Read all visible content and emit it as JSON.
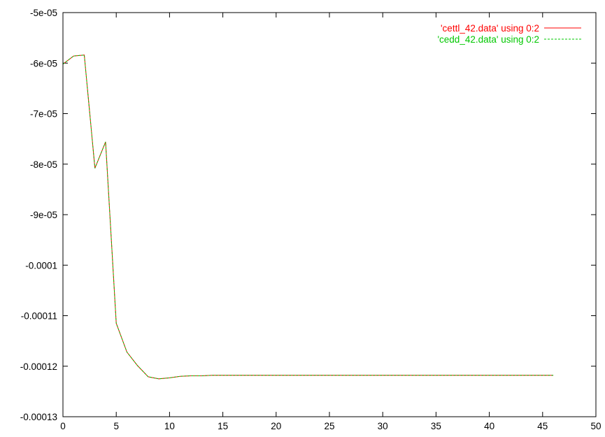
{
  "chart_data": {
    "type": "line",
    "title": "",
    "xlabel": "",
    "ylabel": "",
    "xlim": [
      0,
      50
    ],
    "ylim": [
      -0.00013,
      -5e-05
    ],
    "xticks": [
      0,
      5,
      10,
      15,
      20,
      25,
      30,
      35,
      40,
      45,
      50
    ],
    "xtick_labels": [
      "0",
      "5",
      "10",
      "15",
      "20",
      "25",
      "30",
      "35",
      "40",
      "45",
      "50"
    ],
    "yticks": [
      -5e-05,
      -6e-05,
      -7e-05,
      -8e-05,
      -9e-05,
      -0.0001,
      -0.00011,
      -0.00012,
      -0.00013
    ],
    "ytick_labels": [
      "-5e-05",
      "-6e-05",
      "-7e-05",
      "-8e-05",
      "-9e-05",
      "-0.0001",
      "-0.00011",
      "-0.00012",
      "-0.00013"
    ],
    "grid": false,
    "legend_position": "top-right",
    "x": [
      0,
      1,
      2,
      3,
      4,
      5,
      6,
      7,
      8,
      9,
      10,
      11,
      12,
      13,
      14,
      15,
      16,
      17,
      18,
      19,
      20,
      21,
      22,
      23,
      24,
      25,
      26,
      27,
      28,
      29,
      30,
      31,
      32,
      33,
      34,
      35,
      36,
      37,
      38,
      39,
      40,
      41,
      42,
      43,
      44,
      45,
      46
    ],
    "series": [
      {
        "name": "'cettl_42.data' using 0:2",
        "color": "#ff0000",
        "dash": "solid",
        "values": [
          -6.02e-05,
          -5.86e-05,
          -5.84e-05,
          -8.08e-05,
          -7.56e-05,
          -0.0001115,
          -0.0001172,
          -0.0001199,
          -0.0001221,
          -0.0001225,
          -0.0001223,
          -0.000122,
          -0.0001219,
          -0.0001219,
          -0.0001218,
          -0.0001218,
          -0.0001218,
          -0.0001218,
          -0.0001218,
          -0.0001218,
          -0.0001218,
          -0.0001218,
          -0.0001218,
          -0.0001218,
          -0.0001218,
          -0.0001218,
          -0.0001218,
          -0.0001218,
          -0.0001218,
          -0.0001218,
          -0.0001218,
          -0.0001218,
          -0.0001218,
          -0.0001218,
          -0.0001218,
          -0.0001218,
          -0.0001218,
          -0.0001218,
          -0.0001218,
          -0.0001218,
          -0.0001218,
          -0.0001218,
          -0.0001218,
          -0.0001218,
          -0.0001218,
          -0.0001218,
          -0.0001218
        ]
      },
      {
        "name": "'cedd_42.data' using 0:2",
        "color": "#00c800",
        "dash": "dashed",
        "values": [
          -6.02e-05,
          -5.86e-05,
          -5.84e-05,
          -8.08e-05,
          -7.56e-05,
          -0.0001115,
          -0.0001172,
          -0.0001199,
          -0.0001221,
          -0.0001225,
          -0.0001223,
          -0.000122,
          -0.0001219,
          -0.0001219,
          -0.0001218,
          -0.0001218,
          -0.0001218,
          -0.0001218,
          -0.0001218,
          -0.0001218,
          -0.0001218,
          -0.0001218,
          -0.0001218,
          -0.0001218,
          -0.0001218,
          -0.0001218,
          -0.0001218,
          -0.0001218,
          -0.0001218,
          -0.0001218,
          -0.0001218,
          -0.0001218,
          -0.0001218,
          -0.0001218,
          -0.0001218,
          -0.0001218,
          -0.0001218,
          -0.0001218,
          -0.0001218,
          -0.0001218,
          -0.0001218,
          -0.0001218,
          -0.0001218,
          -0.0001218,
          -0.0001218,
          -0.0001218,
          -0.0001218
        ]
      }
    ]
  }
}
